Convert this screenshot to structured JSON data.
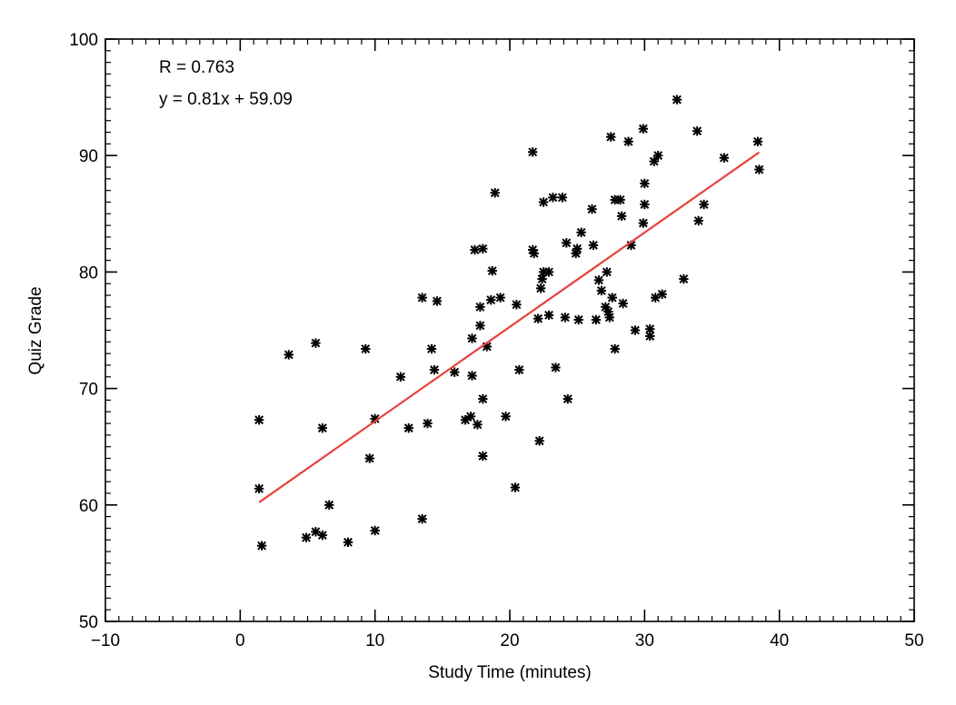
{
  "chart_data": {
    "type": "scatter",
    "title": "",
    "xlabel": "Study Time (minutes)",
    "ylabel": "Quiz Grade",
    "xlim": [
      -10,
      50
    ],
    "ylim": [
      50,
      100
    ],
    "xticks": [
      -10,
      0,
      10,
      20,
      30,
      40,
      50
    ],
    "yticks": [
      50,
      60,
      70,
      80,
      90,
      100
    ],
    "xtick_labels": [
      "−10",
      "0",
      "10",
      "20",
      "30",
      "40",
      "50"
    ],
    "ytick_labels": [
      "50",
      "60",
      "70",
      "80",
      "90",
      "100"
    ],
    "grid": false,
    "annotations": [
      "R = 0.763",
      "y = 0.81x + 59.09"
    ],
    "marker_color": "#000000",
    "fit_line": {
      "slope": 0.81,
      "intercept": 59.09,
      "x_range": [
        1.4,
        38.5
      ],
      "color": "#e8413a"
    },
    "points": [
      [
        1.4,
        67.3
      ],
      [
        1.4,
        61.4
      ],
      [
        1.6,
        56.5
      ],
      [
        3.6,
        72.9
      ],
      [
        5.6,
        73.9
      ],
      [
        4.9,
        57.2
      ],
      [
        5.6,
        57.7
      ],
      [
        6.1,
        57.4
      ],
      [
        6.1,
        66.6
      ],
      [
        6.6,
        60.0
      ],
      [
        8.0,
        56.8
      ],
      [
        9.3,
        73.4
      ],
      [
        9.6,
        64.0
      ],
      [
        10.0,
        67.4
      ],
      [
        10.0,
        57.8
      ],
      [
        11.9,
        71.0
      ],
      [
        12.5,
        66.6
      ],
      [
        13.5,
        77.8
      ],
      [
        13.5,
        58.8
      ],
      [
        13.9,
        67.0
      ],
      [
        14.2,
        73.4
      ],
      [
        14.4,
        71.6
      ],
      [
        14.6,
        77.5
      ],
      [
        15.9,
        71.4
      ],
      [
        16.7,
        67.3
      ],
      [
        17.1,
        67.6
      ],
      [
        17.2,
        74.3
      ],
      [
        17.2,
        71.1
      ],
      [
        17.4,
        81.9
      ],
      [
        17.6,
        66.9
      ],
      [
        17.8,
        77.0
      ],
      [
        17.8,
        75.4
      ],
      [
        18.0,
        82.0
      ],
      [
        18.0,
        69.1
      ],
      [
        18.0,
        64.2
      ],
      [
        18.3,
        73.6
      ],
      [
        18.6,
        77.6
      ],
      [
        18.7,
        80.1
      ],
      [
        18.9,
        86.8
      ],
      [
        19.3,
        77.8
      ],
      [
        19.7,
        67.6
      ],
      [
        20.4,
        61.5
      ],
      [
        20.5,
        77.2
      ],
      [
        20.7,
        71.6
      ],
      [
        21.7,
        90.3
      ],
      [
        21.7,
        81.9
      ],
      [
        21.8,
        81.6
      ],
      [
        22.1,
        76.0
      ],
      [
        22.2,
        65.5
      ],
      [
        22.3,
        78.6
      ],
      [
        22.4,
        79.4
      ],
      [
        22.5,
        80.0
      ],
      [
        22.5,
        86.0
      ],
      [
        22.9,
        80.0
      ],
      [
        22.9,
        76.3
      ],
      [
        23.2,
        86.4
      ],
      [
        23.4,
        71.8
      ],
      [
        23.9,
        86.4
      ],
      [
        24.1,
        76.1
      ],
      [
        24.2,
        82.5
      ],
      [
        24.3,
        69.1
      ],
      [
        24.9,
        81.6
      ],
      [
        25.0,
        82.0
      ],
      [
        25.1,
        75.9
      ],
      [
        25.3,
        83.4
      ],
      [
        26.1,
        85.4
      ],
      [
        26.2,
        82.3
      ],
      [
        26.4,
        75.9
      ],
      [
        26.6,
        79.3
      ],
      [
        26.8,
        78.4
      ],
      [
        27.1,
        77.0
      ],
      [
        27.2,
        80.0
      ],
      [
        27.3,
        76.6
      ],
      [
        27.4,
        76.1
      ],
      [
        27.5,
        91.6
      ],
      [
        27.6,
        77.8
      ],
      [
        27.8,
        86.2
      ],
      [
        27.8,
        73.4
      ],
      [
        28.2,
        86.2
      ],
      [
        28.3,
        84.8
      ],
      [
        28.4,
        77.3
      ],
      [
        28.8,
        91.2
      ],
      [
        29.0,
        82.3
      ],
      [
        29.3,
        75.0
      ],
      [
        29.9,
        92.3
      ],
      [
        29.9,
        84.2
      ],
      [
        30.0,
        87.6
      ],
      [
        30.0,
        85.8
      ],
      [
        30.4,
        75.1
      ],
      [
        30.4,
        74.5
      ],
      [
        30.7,
        89.5
      ],
      [
        30.8,
        77.8
      ],
      [
        31.0,
        90.0
      ],
      [
        31.3,
        78.1
      ],
      [
        32.4,
        94.8
      ],
      [
        32.9,
        79.4
      ],
      [
        33.9,
        92.1
      ],
      [
        34.0,
        84.4
      ],
      [
        34.4,
        85.8
      ],
      [
        35.9,
        89.8
      ],
      [
        38.4,
        91.2
      ],
      [
        38.5,
        88.8
      ]
    ]
  }
}
